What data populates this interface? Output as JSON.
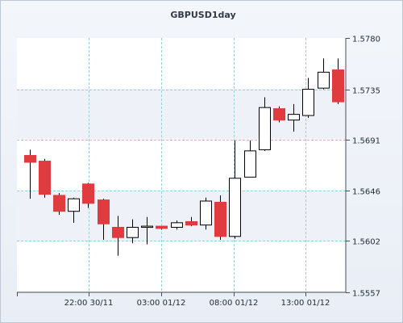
{
  "chart_data": {
    "type": "candlestick",
    "title": "GBPUSD1day",
    "y_axis_position": "right",
    "ylim": [
      1.5557,
      1.578
    ],
    "y_ticks": [
      "1.5780",
      "1.5735",
      "1.5691",
      "1.5646",
      "1.5602",
      "1.5557"
    ],
    "x_tick_labels": [
      "22:00 30/11",
      "03:00 01/12",
      "08:00 01/12",
      "13:00 01/12"
    ],
    "grid": true,
    "colors": {
      "up": "#ffffff",
      "down": "#e03b3f",
      "outline": "#000000",
      "grid": "#9fcfd6"
    },
    "candles": [
      {
        "open": 1.5677,
        "close": 1.5671,
        "high": 1.5682,
        "low": 1.5639
      },
      {
        "open": 1.5672,
        "close": 1.5643,
        "high": 1.5674,
        "low": 1.564
      },
      {
        "open": 1.5642,
        "close": 1.5628,
        "high": 1.5644,
        "low": 1.5625
      },
      {
        "open": 1.5628,
        "close": 1.5639,
        "high": 1.564,
        "low": 1.5618
      },
      {
        "open": 1.5652,
        "close": 1.5635,
        "high": 1.5653,
        "low": 1.5631
      },
      {
        "open": 1.5638,
        "close": 1.5617,
        "high": 1.5639,
        "low": 1.5603
      },
      {
        "open": 1.5614,
        "close": 1.5605,
        "high": 1.5624,
        "low": 1.5589
      },
      {
        "open": 1.5605,
        "close": 1.5614,
        "high": 1.5621,
        "low": 1.56
      },
      {
        "open": 1.5615,
        "close": 1.5615,
        "high": 1.5623,
        "low": 1.5599
      },
      {
        "open": 1.5615,
        "close": 1.5613,
        "high": 1.5615,
        "low": 1.5612
      },
      {
        "open": 1.5614,
        "close": 1.5618,
        "high": 1.562,
        "low": 1.5612
      },
      {
        "open": 1.5619,
        "close": 1.5616,
        "high": 1.5623,
        "low": 1.5615
      },
      {
        "open": 1.5616,
        "close": 1.5637,
        "high": 1.564,
        "low": 1.5612
      },
      {
        "open": 1.5636,
        "close": 1.5606,
        "high": 1.5642,
        "low": 1.5603
      },
      {
        "open": 1.5606,
        "close": 1.5657,
        "high": 1.569,
        "low": 1.5604
      },
      {
        "open": 1.5658,
        "close": 1.5681,
        "high": 1.569,
        "low": 1.5658
      },
      {
        "open": 1.5682,
        "close": 1.5719,
        "high": 1.5728,
        "low": 1.5681
      },
      {
        "open": 1.5718,
        "close": 1.5708,
        "high": 1.572,
        "low": 1.5706
      },
      {
        "open": 1.5708,
        "close": 1.5713,
        "high": 1.5722,
        "low": 1.5698
      },
      {
        "open": 1.5712,
        "close": 1.5735,
        "high": 1.5745,
        "low": 1.571
      },
      {
        "open": 1.5736,
        "close": 1.575,
        "high": 1.5762,
        "low": 1.5735
      },
      {
        "open": 1.5752,
        "close": 1.5724,
        "high": 1.5762,
        "low": 1.5722
      }
    ]
  }
}
